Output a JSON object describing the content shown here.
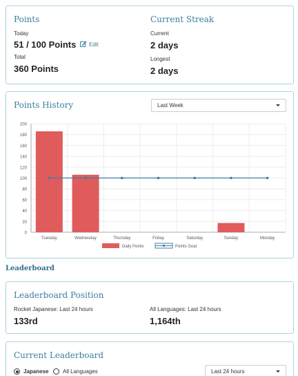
{
  "stats": {
    "points_heading": "Points",
    "today_label": "Today",
    "today_value": "51 / 100 Points",
    "edit_label": "Edit",
    "total_label": "Total",
    "total_value": "360 Points",
    "streak_heading": "Current Streak",
    "current_label": "Current",
    "current_value": "2 days",
    "longest_label": "Longest",
    "longest_value": "2 days"
  },
  "history": {
    "heading": "Points History",
    "range_selected": "Last Week"
  },
  "chart_data": {
    "type": "bar",
    "categories": [
      "Tuesday",
      "Wednesday",
      "Thursday",
      "Friday",
      "Saturday",
      "Sunday",
      "Monday"
    ],
    "series": [
      {
        "name": "Daily Points",
        "type": "bar",
        "color": "#e05c5c",
        "values": [
          186,
          106,
          0,
          0,
          0,
          17,
          0
        ]
      },
      {
        "name": "Points Goal",
        "type": "line",
        "color": "#3b7ea1",
        "values": [
          100,
          100,
          100,
          100,
          100,
          100,
          100
        ]
      }
    ],
    "ylim": [
      0,
      200
    ],
    "yticks": [
      "0",
      "20",
      "40",
      "60",
      "80",
      "100",
      "120",
      "140",
      "160",
      "180",
      "200"
    ],
    "grid": true,
    "legend_position": "bottom"
  },
  "leaderboard": {
    "section_title": "Leaderboard",
    "position_heading": "Leaderboard Position",
    "rocket_label": "Rocket Japanese: Last 24 hours",
    "rocket_rank": "133rd",
    "all_label": "All Languages: Last 24 hours",
    "all_rank": "1,164th",
    "current_heading": "Current Leaderboard",
    "option_japanese": "Japanese",
    "option_all": "All Languages",
    "range_selected": "Last 24 hours"
  },
  "colors": {
    "accent": "#3b7ea1",
    "panel_border": "#a9d5de",
    "bar": "#e05c5c"
  }
}
